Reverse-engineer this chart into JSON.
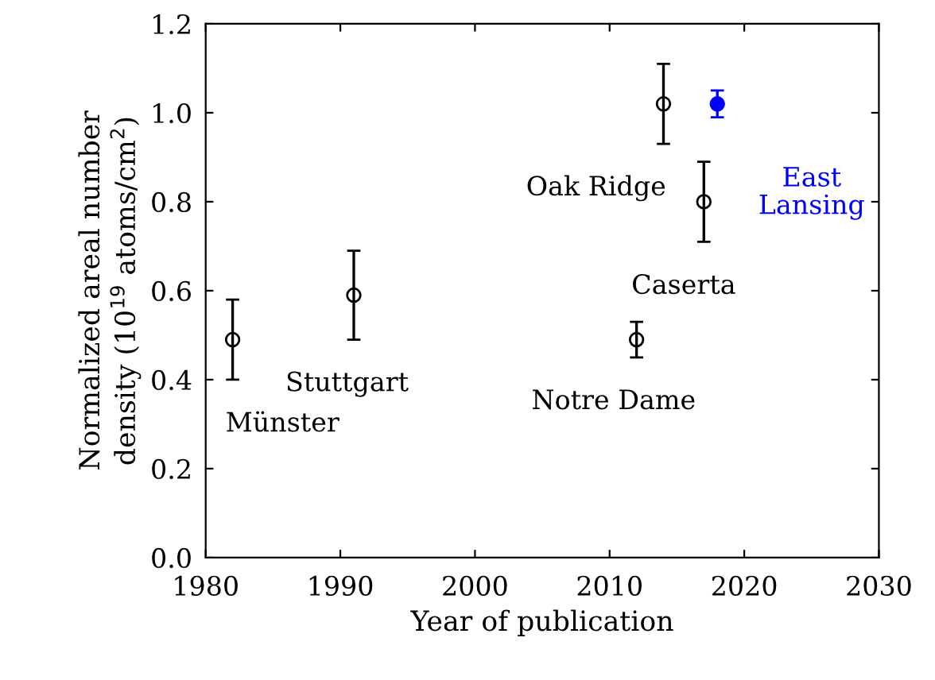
{
  "chart_data": {
    "type": "scatter",
    "xlabel": "Year of publication",
    "ylabel": "Normalized areal number\ndensity (10$^{19}$ atoms/cm$^{2}$)",
    "xlim": [
      1980,
      2030
    ],
    "xticks": [
      1980,
      1990,
      2000,
      2010,
      2020,
      2030
    ],
    "ylim": [
      0.0,
      1.2
    ],
    "yticks": [
      {
        "value": 0.0,
        "label": "0.0"
      },
      0.2,
      0.4,
      0.6,
      0.8,
      {
        "value": 1.0,
        "label": "1.0"
      },
      1.2
    ],
    "grid": false,
    "legend": false,
    "series": [
      {
        "color": "#000000",
        "marker": "circle",
        "x": [
          1982,
          1991,
          2012,
          2014,
          2017
        ],
        "values": [
          0.49,
          0.59,
          0.49,
          1.02,
          0.8
        ],
        "errors": [
          0.09,
          0.1,
          0.04,
          0.09,
          0.09
        ]
      },
      {
        "color": "#0000ff",
        "marker": "circle",
        "x": [
          2018
        ],
        "values": [
          1.02
        ],
        "errors": [
          0.03
        ]
      }
    ],
    "annotations": [
      "Münster",
      "Stuttgart",
      "Notre Dame",
      "Oak Ridge",
      "Caserta",
      "East\nLansing"
    ]
  }
}
